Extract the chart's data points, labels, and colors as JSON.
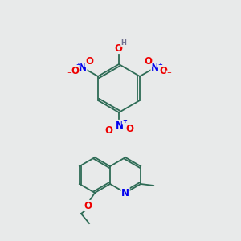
{
  "background_color": "#e8eaea",
  "bond_color": "#2d6b55",
  "atom_colors": {
    "N": "#0000ee",
    "O": "#ee0000",
    "H": "#707090",
    "C": "#2d6b55"
  },
  "fig_width": 3.0,
  "fig_height": 3.0,
  "dpi": 100
}
